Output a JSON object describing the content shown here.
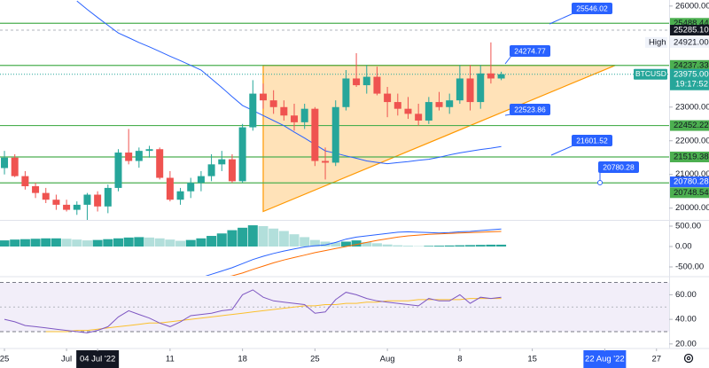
{
  "chart_data": [
    {
      "type": "candlestick",
      "symbol": "BTCUSD",
      "open": [
        21190,
        21500,
        20950,
        20650,
        20450,
        20250,
        20100,
        19950,
        20100,
        20400,
        20050,
        20600,
        21650,
        21400,
        21700,
        21750,
        20900,
        20250,
        20500,
        20750,
        20950,
        21300,
        21450,
        20800,
        22400,
        23400,
        23200,
        23000,
        22750,
        22550,
        22950,
        21400,
        21350,
        23000,
        23850,
        23650,
        23900,
        23400,
        23150,
        22950,
        22800,
        22600,
        23150,
        23000,
        23200,
        23850,
        23150,
        24000,
        23850
      ],
      "high": [
        21700,
        21600,
        21100,
        20750,
        20600,
        20400,
        20250,
        20200,
        20450,
        20500,
        20700,
        21750,
        22350,
        21800,
        21850,
        21800,
        21100,
        20600,
        20900,
        21100,
        21600,
        21700,
        21600,
        22500,
        23800,
        23700,
        23500,
        23200,
        23100,
        23100,
        23000,
        21800,
        23200,
        24100,
        24600,
        24250,
        24200,
        23600,
        23400,
        23300,
        23100,
        23300,
        23450,
        23400,
        24250,
        24250,
        24250,
        24921,
        24050
      ],
      "low": [
        21000,
        20920,
        20550,
        20300,
        20150,
        19950,
        19900,
        19800,
        19650,
        19900,
        19850,
        20500,
        21300,
        21200,
        21500,
        20850,
        20200,
        20100,
        20300,
        20500,
        20800,
        21100,
        20750,
        20750,
        22300,
        22950,
        22800,
        22600,
        22300,
        22350,
        21250,
        20850,
        21250,
        22900,
        23600,
        23400,
        23350,
        22700,
        22750,
        22650,
        22450,
        22500,
        22900,
        22800,
        23100,
        22900,
        22950,
        23700,
        23800
      ],
      "close": [
        21500,
        20950,
        20650,
        20450,
        20250,
        20100,
        19950,
        20100,
        20400,
        20050,
        20600,
        21650,
        21400,
        21700,
        21750,
        20900,
        20250,
        20500,
        20750,
        20950,
        21300,
        21450,
        20800,
        22400,
        23400,
        23200,
        23000,
        22750,
        22550,
        22950,
        21400,
        21350,
        23000,
        23850,
        23650,
        23900,
        23400,
        23150,
        22950,
        22800,
        22600,
        23150,
        23000,
        23200,
        23850,
        23150,
        24000,
        23850,
        23975
      ],
      "colors": {
        "up": "#26a69a",
        "down": "#ef5350"
      },
      "ma": {
        "color": "#2962ff",
        "values": [
          null,
          null,
          null,
          null,
          null,
          null,
          null,
          26150,
          25900,
          25660,
          25430,
          25200,
          25060,
          24920,
          24790,
          24650,
          24510,
          24380,
          24240,
          24100,
          23840,
          23580,
          23310,
          23050,
          22900,
          22750,
          22600,
          22450,
          22260,
          22080,
          21890,
          21700,
          21630,
          21550,
          21480,
          21400,
          21360,
          21320,
          21350,
          21380,
          21420,
          21450,
          21510,
          21580,
          21640,
          21690,
          21740,
          21780,
          21830
        ]
      },
      "xlim": [
        -0.43,
        64.22
      ],
      "xticks": [
        {
          "value": 0,
          "label": "25"
        },
        {
          "value": 6,
          "label": "Jul"
        },
        {
          "value": 9,
          "label": "04 Jul '22"
        },
        {
          "value": 16,
          "label": "11"
        },
        {
          "value": 23,
          "label": "18"
        },
        {
          "value": 30,
          "label": "25"
        },
        {
          "value": 37,
          "label": "Aug"
        },
        {
          "value": 44,
          "label": "8"
        },
        {
          "value": 51,
          "label": "15"
        },
        {
          "value": 58,
          "label": "22 Aug '22"
        },
        {
          "value": 63,
          "label": "27"
        }
      ],
      "ylim": [
        19650,
        26180
      ],
      "yticks": [
        {
          "value": 26000,
          "label": "26000.00"
        },
        {
          "value": 23000,
          "label": "23000.00"
        },
        {
          "value": 22000,
          "label": "22000.00"
        },
        {
          "value": 21000,
          "label": "21000.00"
        },
        {
          "value": 20000,
          "label": "20000.00"
        }
      ],
      "levels": [
        25488.44,
        24237.33,
        22452.22,
        21519.38,
        20748.54
      ],
      "level_color": "#4caf50",
      "triangle": {
        "start": 25,
        "end": 59,
        "top": 24237.33,
        "bottom": 19900,
        "color": "#ff9800"
      },
      "marker": {
        "value": 25285.1,
        "label": "25285.10"
      },
      "session_high": {
        "value": 24921,
        "label": "24921.00"
      },
      "high_label": "High",
      "last_price": {
        "value": 23975,
        "label": "23975.00"
      },
      "countdown": "19:17:52",
      "alert": 20780.28,
      "callouts": [
        25546.02,
        24274.77,
        22523.86,
        21601.52,
        20780.28
      ],
      "callout_color": "#2962ff"
    },
    {
      "type": "macd",
      "histogram": [
        150,
        170,
        180,
        190,
        200,
        200,
        190,
        170,
        150,
        160,
        180,
        200,
        220,
        230,
        220,
        200,
        170,
        140,
        160,
        200,
        260,
        320,
        400,
        460,
        520,
        500,
        440,
        380,
        300,
        230,
        160,
        120,
        100,
        120,
        150,
        110,
        80,
        50,
        30,
        20,
        10,
        15,
        20,
        25,
        30,
        35,
        40,
        45,
        45
      ],
      "histogram_colors": {
        "rising": "#26a69a",
        "falling": "#b2dfdb"
      },
      "macd": {
        "color": "#2962ff",
        "values": [
          null,
          null,
          null,
          null,
          null,
          null,
          null,
          null,
          null,
          null,
          null,
          null,
          null,
          null,
          null,
          null,
          null,
          null,
          null,
          -760,
          -680,
          -600,
          -520,
          -420,
          -320,
          -240,
          -170,
          -110,
          -60,
          -10,
          20,
          40,
          100,
          180,
          230,
          260,
          290,
          320,
          350,
          360,
          350,
          340,
          330,
          340,
          360,
          370,
          390,
          410,
          430
        ]
      },
      "signal": {
        "color": "#ff6d00",
        "values": [
          null,
          null,
          null,
          null,
          null,
          null,
          null,
          null,
          null,
          null,
          null,
          null,
          null,
          null,
          null,
          null,
          null,
          null,
          null,
          null,
          null,
          -760,
          -720,
          -650,
          -560,
          -480,
          -400,
          -330,
          -270,
          -210,
          -150,
          -100,
          -50,
          0,
          50,
          100,
          150,
          190,
          230,
          260,
          280,
          300,
          310,
          320,
          330,
          340,
          350,
          360,
          370
        ]
      },
      "ylim": [
        -717,
        630
      ],
      "yticks": [
        {
          "value": 500,
          "label": "500.00"
        },
        {
          "value": 0,
          "label": "0.00"
        },
        {
          "value": -500,
          "label": "-500.00"
        }
      ]
    },
    {
      "type": "rsi",
      "rsi": {
        "color": "#7e57c2",
        "values": [
          40,
          38,
          35,
          34,
          33,
          32,
          31,
          30,
          29,
          31,
          34,
          42,
          47,
          44,
          41,
          37,
          34,
          38,
          43,
          44,
          45,
          47,
          48,
          60,
          64,
          58,
          55,
          54,
          53,
          52,
          45,
          46,
          56,
          62,
          60,
          57,
          55,
          54,
          53,
          52,
          51,
          57,
          55,
          55,
          60,
          53,
          58,
          57,
          58
        ]
      },
      "rsi_ma": {
        "color": "#fbc02d",
        "values": [
          null,
          null,
          null,
          null,
          30,
          30,
          30,
          31,
          31,
          32,
          33,
          34,
          35,
          36,
          37,
          37,
          38,
          39,
          40,
          41,
          42,
          43,
          44,
          45,
          46,
          47,
          48,
          49,
          50,
          51,
          51,
          52,
          52,
          53,
          53,
          54,
          54,
          55,
          55,
          55,
          56,
          56,
          56,
          56,
          56,
          57,
          57,
          57,
          57
        ]
      },
      "band": [
        30,
        70
      ],
      "ylim": [
        17,
        74
      ],
      "yticks": [
        {
          "value": 60,
          "label": "60.00"
        },
        {
          "value": 40,
          "label": "40.00"
        },
        {
          "value": 20,
          "label": "20.00"
        }
      ]
    }
  ]
}
